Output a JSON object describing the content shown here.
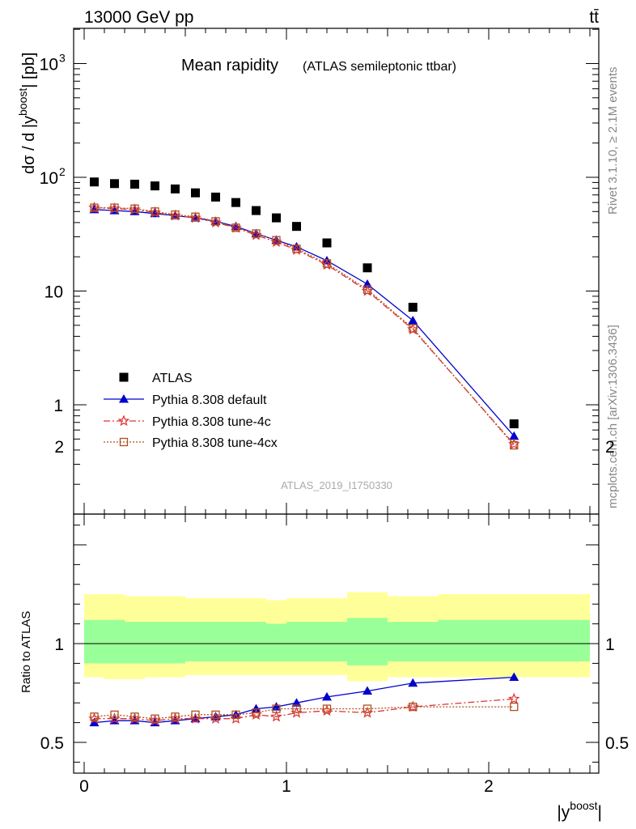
{
  "header": {
    "energy_label": "13000 GeV pp",
    "process_label": "tt̄"
  },
  "side_text": {
    "rivet": "Rivet 3.1.10, ≥ 2.1M events",
    "mcplots": "mcplots.cern.ch [arXiv:1306.3436]"
  },
  "chart_data": [
    {
      "type": "scatter",
      "title": "Mean rapidity",
      "subtitle": "(ATLAS semileptonic ttbar)",
      "analysis_id": "ATLAS_2019_I1750330",
      "ylabel_main": "dσ / d |y",
      "ylabel_sup": "boost",
      "ylabel_end": "| [pb]",
      "xlabel_main": "|y",
      "xlabel_sup": "boost",
      "xlabel_end": "|",
      "y_scale": "log",
      "xlim": [
        -0.1,
        2.55
      ],
      "ylim": [
        0.15,
        2000
      ],
      "x_ticks": [
        {
          "value": 0,
          "label": "0"
        },
        {
          "value": 1,
          "label": "1"
        },
        {
          "value": 2,
          "label": "2"
        }
      ],
      "y_ticks": [
        {
          "value": 1,
          "label": "1"
        },
        {
          "value": 10,
          "label": "10"
        },
        {
          "value": 100,
          "label": "10",
          "sup": "2"
        },
        {
          "value": 1000,
          "label": "10",
          "sup": "3"
        }
      ],
      "legend_position": "bottom-left",
      "x": [
        0.05,
        0.15,
        0.25,
        0.35,
        0.45,
        0.55,
        0.65,
        0.75,
        0.85,
        0.95,
        1.05,
        1.2,
        1.4,
        1.625,
        2.125
      ],
      "series": [
        {
          "name": "ATLAS",
          "marker": "square",
          "color": "#000000",
          "values": [
            91,
            88,
            87,
            84,
            79,
            73,
            67,
            60,
            51,
            44,
            37,
            26.5,
            16,
            7.2,
            0.68
          ]
        },
        {
          "name": "Pythia 8.308 default",
          "marker": "triangle",
          "color": "#0000cc",
          "line": "solid",
          "values": [
            52,
            51,
            50,
            48,
            46,
            44,
            41,
            37,
            32,
            28,
            24.5,
            18.5,
            11.5,
            5.5,
            0.53
          ]
        },
        {
          "name": "Pythia 8.308 tune-4c",
          "marker": "star",
          "color": "#dd3333",
          "line": "dashdot",
          "values": [
            54,
            53,
            52,
            49,
            46,
            44,
            40,
            36,
            31,
            27,
            23,
            17,
            10,
            4.6,
            0.45
          ]
        },
        {
          "name": "Pythia 8.308 tune-4cx",
          "marker": "open-square",
          "color": "#b05020",
          "line": "dotted",
          "values": [
            54,
            54,
            53,
            50,
            47,
            45,
            41,
            36,
            32,
            28,
            23.5,
            17.5,
            10.3,
            4.7,
            0.44
          ]
        }
      ]
    },
    {
      "type": "scatter",
      "ylabel": "Ratio to ATLAS",
      "ylim": [
        0.4,
        2.5
      ],
      "xlim": [
        -0.1,
        2.55
      ],
      "y_ticks": [
        {
          "value": 0.5,
          "label": "0.5"
        },
        {
          "value": 1,
          "label": "1"
        },
        {
          "value": 2,
          "label": "2"
        }
      ],
      "bin_edges": [
        0.0,
        0.1,
        0.2,
        0.3,
        0.4,
        0.5,
        0.6,
        0.7,
        0.8,
        0.9,
        1.0,
        1.1,
        1.3,
        1.5,
        1.75,
        2.5
      ],
      "band_inner": [
        [
          0.9,
          1.12
        ],
        [
          0.9,
          1.12
        ],
        [
          0.9,
          1.11
        ],
        [
          0.9,
          1.11
        ],
        [
          0.9,
          1.11
        ],
        [
          0.91,
          1.11
        ],
        [
          0.91,
          1.11
        ],
        [
          0.91,
          1.11
        ],
        [
          0.91,
          1.11
        ],
        [
          0.91,
          1.1
        ],
        [
          0.91,
          1.11
        ],
        [
          0.91,
          1.11
        ],
        [
          0.89,
          1.13
        ],
        [
          0.91,
          1.11
        ],
        [
          0.91,
          1.12
        ]
      ],
      "band_outer": [
        [
          0.83,
          1.25
        ],
        [
          0.82,
          1.25
        ],
        [
          0.82,
          1.24
        ],
        [
          0.83,
          1.24
        ],
        [
          0.83,
          1.24
        ],
        [
          0.84,
          1.23
        ],
        [
          0.84,
          1.23
        ],
        [
          0.84,
          1.23
        ],
        [
          0.84,
          1.23
        ],
        [
          0.84,
          1.22
        ],
        [
          0.84,
          1.23
        ],
        [
          0.84,
          1.23
        ],
        [
          0.81,
          1.26
        ],
        [
          0.83,
          1.24
        ],
        [
          0.83,
          1.25
        ]
      ],
      "band_inner_color": "#99ff99",
      "band_outer_color": "#ffff99",
      "x": [
        0.05,
        0.15,
        0.25,
        0.35,
        0.45,
        0.55,
        0.65,
        0.75,
        0.85,
        0.95,
        1.05,
        1.2,
        1.4,
        1.625,
        2.125
      ],
      "series": [
        {
          "name": "Pythia 8.308 default",
          "marker": "triangle",
          "color": "#0000cc",
          "line": "solid",
          "values": [
            0.6,
            0.61,
            0.61,
            0.6,
            0.61,
            0.62,
            0.63,
            0.64,
            0.67,
            0.68,
            0.7,
            0.73,
            0.76,
            0.8,
            0.83
          ]
        },
        {
          "name": "Pythia 8.308 tune-4c",
          "marker": "star",
          "color": "#dd3333",
          "line": "dashdot",
          "values": [
            0.62,
            0.62,
            0.62,
            0.61,
            0.62,
            0.62,
            0.62,
            0.62,
            0.64,
            0.63,
            0.65,
            0.66,
            0.65,
            0.68,
            0.72
          ]
        },
        {
          "name": "Pythia 8.308 tune-4cx",
          "marker": "open-square",
          "color": "#b05020",
          "line": "dotted",
          "values": [
            0.63,
            0.64,
            0.63,
            0.62,
            0.63,
            0.64,
            0.64,
            0.64,
            0.65,
            0.67,
            0.67,
            0.67,
            0.67,
            0.68,
            0.68
          ]
        }
      ]
    }
  ]
}
